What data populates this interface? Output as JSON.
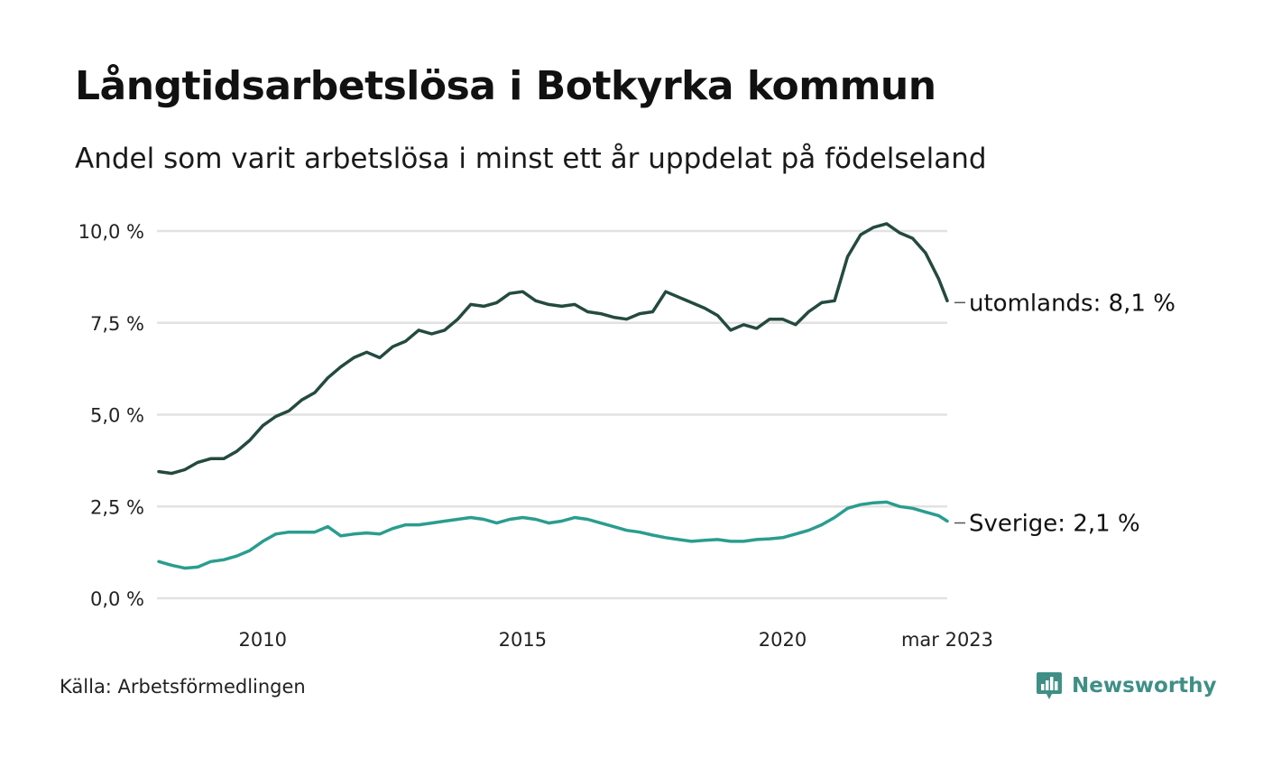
{
  "header": {
    "title": "Långtidsarbetslösa i Botkyrka kommun",
    "subtitle": "Andel som varit arbetslösa i minst ett år uppdelat på födelseland"
  },
  "footer": {
    "source": "Källa: Arbetsförmedlingen",
    "brand": "Newsworthy",
    "brand_icon": "newsworthy-logo-icon"
  },
  "colors": {
    "utomlands": "#244a40",
    "sverige": "#2a9d8f",
    "grid": "#e2e2e2",
    "brand": "#3f8f86"
  },
  "chart_data": {
    "type": "line",
    "x_unit": "months",
    "x_range": [
      "2008-01",
      "2023-03"
    ],
    "xticks": [
      {
        "x": "2010-01",
        "label": "2010"
      },
      {
        "x": "2015-01",
        "label": "2015"
      },
      {
        "x": "2020-01",
        "label": "2020"
      },
      {
        "x": "2023-03",
        "label": "mar 2023"
      }
    ],
    "ylim": [
      0,
      10.5
    ],
    "yticks": [
      {
        "value": 0,
        "label": "0,0 %"
      },
      {
        "value": 2.5,
        "label": "2,5 %"
      },
      {
        "value": 5,
        "label": "5,0 %"
      },
      {
        "value": 7.5,
        "label": "7,5 %"
      },
      {
        "value": 10,
        "label": "10,0 %"
      }
    ],
    "grid": true,
    "series": [
      {
        "key": "utomlands",
        "end_label": "utomlands: 8,1 %",
        "points": [
          [
            "2008-01",
            3.45
          ],
          [
            "2008-04",
            3.4
          ],
          [
            "2008-07",
            3.5
          ],
          [
            "2008-10",
            3.7
          ],
          [
            "2009-01",
            3.8
          ],
          [
            "2009-04",
            3.8
          ],
          [
            "2009-07",
            4.0
          ],
          [
            "2009-10",
            4.3
          ],
          [
            "2010-01",
            4.7
          ],
          [
            "2010-04",
            4.95
          ],
          [
            "2010-07",
            5.1
          ],
          [
            "2010-10",
            5.4
          ],
          [
            "2011-01",
            5.6
          ],
          [
            "2011-04",
            6.0
          ],
          [
            "2011-07",
            6.3
          ],
          [
            "2011-10",
            6.55
          ],
          [
            "2012-01",
            6.7
          ],
          [
            "2012-04",
            6.55
          ],
          [
            "2012-07",
            6.85
          ],
          [
            "2012-10",
            7.0
          ],
          [
            "2013-01",
            7.3
          ],
          [
            "2013-04",
            7.2
          ],
          [
            "2013-07",
            7.3
          ],
          [
            "2013-10",
            7.6
          ],
          [
            "2014-01",
            8.0
          ],
          [
            "2014-04",
            7.95
          ],
          [
            "2014-07",
            8.05
          ],
          [
            "2014-10",
            8.3
          ],
          [
            "2015-01",
            8.35
          ],
          [
            "2015-04",
            8.1
          ],
          [
            "2015-07",
            8.0
          ],
          [
            "2015-10",
            7.95
          ],
          [
            "2016-01",
            8.0
          ],
          [
            "2016-04",
            7.8
          ],
          [
            "2016-07",
            7.75
          ],
          [
            "2016-10",
            7.65
          ],
          [
            "2017-01",
            7.6
          ],
          [
            "2017-04",
            7.75
          ],
          [
            "2017-07",
            7.8
          ],
          [
            "2017-10",
            8.35
          ],
          [
            "2018-01",
            8.2
          ],
          [
            "2018-04",
            8.05
          ],
          [
            "2018-07",
            7.9
          ],
          [
            "2018-10",
            7.7
          ],
          [
            "2019-01",
            7.3
          ],
          [
            "2019-04",
            7.45
          ],
          [
            "2019-07",
            7.35
          ],
          [
            "2019-10",
            7.6
          ],
          [
            "2020-01",
            7.6
          ],
          [
            "2020-04",
            7.45
          ],
          [
            "2020-07",
            7.8
          ],
          [
            "2020-10",
            8.05
          ],
          [
            "2021-01",
            8.1
          ],
          [
            "2021-04",
            9.3
          ],
          [
            "2021-07",
            9.9
          ],
          [
            "2021-10",
            10.1
          ],
          [
            "2022-01",
            10.2
          ],
          [
            "2022-04",
            9.95
          ],
          [
            "2022-07",
            9.8
          ],
          [
            "2022-10",
            9.4
          ],
          [
            "2023-01",
            8.7
          ],
          [
            "2023-03",
            8.1
          ]
        ]
      },
      {
        "key": "sverige",
        "end_label": "Sverige: 2,1 %",
        "points": [
          [
            "2008-01",
            1.0
          ],
          [
            "2008-04",
            0.9
          ],
          [
            "2008-07",
            0.82
          ],
          [
            "2008-10",
            0.85
          ],
          [
            "2009-01",
            1.0
          ],
          [
            "2009-04",
            1.05
          ],
          [
            "2009-07",
            1.15
          ],
          [
            "2009-10",
            1.3
          ],
          [
            "2010-01",
            1.55
          ],
          [
            "2010-04",
            1.75
          ],
          [
            "2010-07",
            1.8
          ],
          [
            "2010-10",
            1.8
          ],
          [
            "2011-01",
            1.8
          ],
          [
            "2011-04",
            1.95
          ],
          [
            "2011-07",
            1.7
          ],
          [
            "2011-10",
            1.75
          ],
          [
            "2012-01",
            1.78
          ],
          [
            "2012-04",
            1.75
          ],
          [
            "2012-07",
            1.9
          ],
          [
            "2012-10",
            2.0
          ],
          [
            "2013-01",
            2.0
          ],
          [
            "2013-04",
            2.05
          ],
          [
            "2013-07",
            2.1
          ],
          [
            "2013-10",
            2.15
          ],
          [
            "2014-01",
            2.2
          ],
          [
            "2014-04",
            2.15
          ],
          [
            "2014-07",
            2.05
          ],
          [
            "2014-10",
            2.15
          ],
          [
            "2015-01",
            2.2
          ],
          [
            "2015-04",
            2.15
          ],
          [
            "2015-07",
            2.05
          ],
          [
            "2015-10",
            2.1
          ],
          [
            "2016-01",
            2.2
          ],
          [
            "2016-04",
            2.15
          ],
          [
            "2016-07",
            2.05
          ],
          [
            "2016-10",
            1.95
          ],
          [
            "2017-01",
            1.85
          ],
          [
            "2017-04",
            1.8
          ],
          [
            "2017-07",
            1.72
          ],
          [
            "2017-10",
            1.65
          ],
          [
            "2018-01",
            1.6
          ],
          [
            "2018-04",
            1.55
          ],
          [
            "2018-07",
            1.58
          ],
          [
            "2018-10",
            1.6
          ],
          [
            "2019-01",
            1.55
          ],
          [
            "2019-04",
            1.55
          ],
          [
            "2019-07",
            1.6
          ],
          [
            "2019-10",
            1.62
          ],
          [
            "2020-01",
            1.65
          ],
          [
            "2020-04",
            1.75
          ],
          [
            "2020-07",
            1.85
          ],
          [
            "2020-10",
            2.0
          ],
          [
            "2021-01",
            2.2
          ],
          [
            "2021-04",
            2.45
          ],
          [
            "2021-07",
            2.55
          ],
          [
            "2021-10",
            2.6
          ],
          [
            "2022-01",
            2.62
          ],
          [
            "2022-04",
            2.5
          ],
          [
            "2022-07",
            2.45
          ],
          [
            "2022-10",
            2.35
          ],
          [
            "2023-01",
            2.25
          ],
          [
            "2023-03",
            2.1
          ]
        ]
      }
    ]
  }
}
